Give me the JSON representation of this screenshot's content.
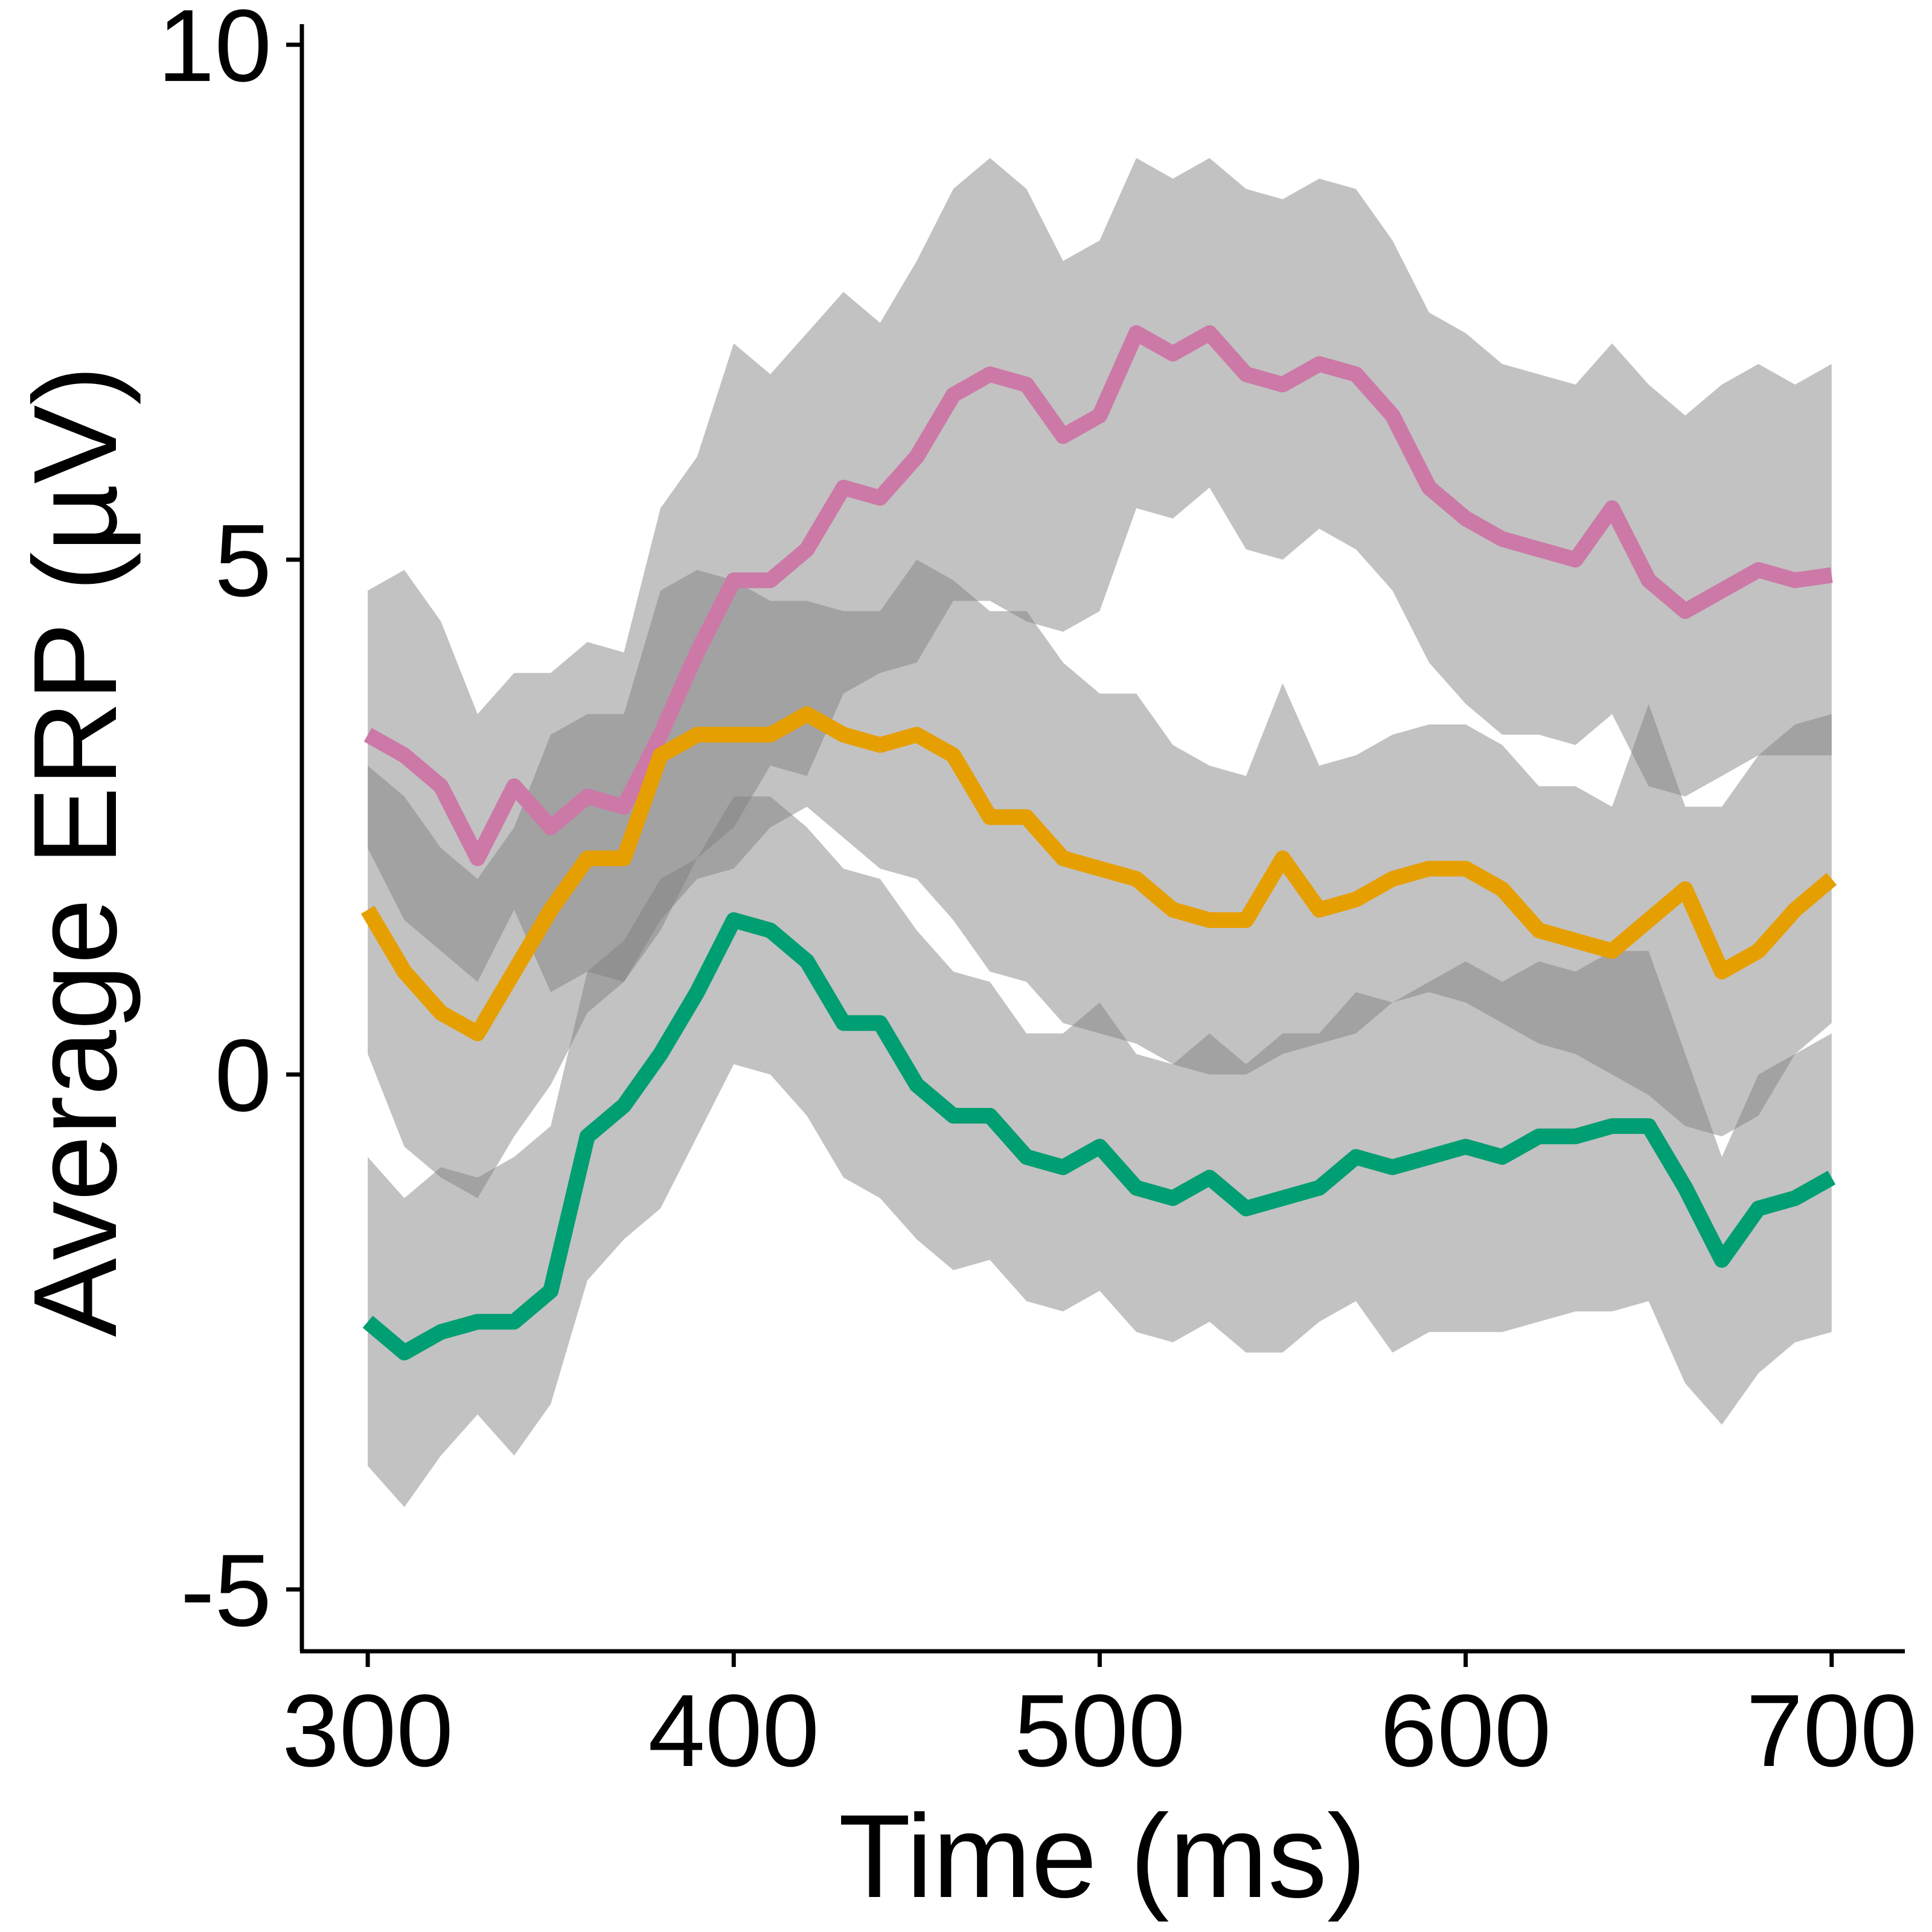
{
  "chart_data": {
    "type": "line",
    "title": "",
    "xlabel": "Time (ms)",
    "ylabel": "Average ERP (µV)",
    "xlim": [
      282,
      720
    ],
    "ylim": [
      -5.6,
      10.2
    ],
    "xticks": [
      300,
      400,
      500,
      600,
      700
    ],
    "yticks": [
      -5,
      0,
      5,
      10
    ],
    "xtick_labels": [
      "300",
      "400",
      "500",
      "600",
      "700"
    ],
    "ytick_labels": [
      "-5",
      "0",
      "5",
      "10"
    ],
    "grid": false,
    "legend": "none",
    "x": [
      300,
      310,
      320,
      330,
      340,
      350,
      360,
      370,
      380,
      390,
      400,
      410,
      420,
      430,
      440,
      450,
      460,
      470,
      480,
      490,
      500,
      510,
      520,
      530,
      540,
      550,
      560,
      570,
      580,
      590,
      600,
      610,
      620,
      630,
      640,
      650,
      660,
      670,
      680,
      690,
      700
    ],
    "series": [
      {
        "color": "#CC79A7",
        "values": [
          3.3,
          3.1,
          2.8,
          2.1,
          2.8,
          2.4,
          2.7,
          2.6,
          3.3,
          4.1,
          4.8,
          4.8,
          5.1,
          5.7,
          5.6,
          6.0,
          6.6,
          6.8,
          6.7,
          6.2,
          6.4,
          7.2,
          7.0,
          7.2,
          6.8,
          6.7,
          6.9,
          6.8,
          6.4,
          5.7,
          5.4,
          5.2,
          5.1,
          5.0,
          5.5,
          4.8,
          4.5,
          4.7,
          4.9,
          4.8,
          4.85
        ],
        "lower": [
          2.2,
          1.5,
          1.2,
          0.9,
          1.6,
          0.8,
          1.0,
          0.9,
          1.4,
          2.1,
          2.4,
          3.0,
          2.9,
          3.7,
          3.9,
          4.0,
          4.6,
          4.6,
          4.4,
          4.3,
          4.5,
          5.5,
          5.4,
          5.7,
          5.1,
          5.0,
          5.3,
          5.1,
          4.7,
          4.0,
          3.6,
          3.3,
          3.3,
          3.2,
          3.5,
          2.8,
          2.7,
          2.9,
          3.1,
          3.1,
          3.1
        ],
        "upper": [
          4.7,
          4.9,
          4.4,
          3.5,
          3.9,
          3.9,
          4.2,
          4.1,
          5.5,
          6.0,
          7.1,
          6.8,
          7.2,
          7.6,
          7.3,
          7.9,
          8.6,
          8.9,
          8.6,
          7.9,
          8.1,
          8.9,
          8.7,
          8.9,
          8.6,
          8.5,
          8.7,
          8.6,
          8.1,
          7.4,
          7.2,
          6.9,
          6.8,
          6.7,
          7.1,
          6.7,
          6.4,
          6.7,
          6.9,
          6.7,
          6.9
        ]
      },
      {
        "color": "#E69F00",
        "values": [
          1.6,
          1.0,
          0.6,
          0.4,
          1.0,
          1.6,
          2.1,
          2.1,
          3.1,
          3.3,
          3.3,
          3.3,
          3.5,
          3.3,
          3.2,
          3.3,
          3.1,
          2.5,
          2.5,
          2.1,
          2.0,
          1.9,
          1.6,
          1.5,
          1.5,
          2.1,
          1.6,
          1.7,
          1.9,
          2.0,
          2.0,
          1.8,
          1.4,
          1.3,
          1.2,
          1.5,
          1.8,
          1.0,
          1.2,
          1.6,
          1.9
        ],
        "lower": [
          0.2,
          -0.7,
          -1.0,
          -1.2,
          -0.6,
          -0.1,
          0.6,
          0.9,
          1.5,
          1.9,
          2.0,
          2.4,
          2.6,
          2.3,
          2.0,
          1.9,
          1.5,
          1.0,
          0.9,
          0.5,
          0.4,
          0.3,
          0.1,
          0.0,
          0.0,
          0.2,
          0.3,
          0.4,
          0.7,
          0.8,
          0.7,
          0.5,
          0.3,
          0.2,
          0.0,
          -0.2,
          -0.5,
          -0.6,
          -0.4,
          0.2,
          0.5
        ],
        "upper": [
          3.0,
          2.7,
          2.2,
          1.9,
          2.4,
          3.3,
          3.5,
          3.5,
          4.7,
          4.9,
          4.8,
          4.6,
          4.6,
          4.5,
          4.5,
          5.0,
          4.8,
          4.5,
          4.5,
          4.0,
          3.7,
          3.7,
          3.2,
          3.0,
          2.9,
          3.8,
          3.0,
          3.1,
          3.3,
          3.4,
          3.4,
          3.2,
          2.8,
          2.8,
          2.6,
          3.6,
          2.6,
          2.6,
          3.1,
          3.4,
          3.5
        ]
      },
      {
        "color": "#009E73",
        "values": [
          -2.4,
          -2.7,
          -2.5,
          -2.4,
          -2.4,
          -2.1,
          -0.6,
          -0.3,
          0.2,
          0.8,
          1.5,
          1.4,
          1.1,
          0.5,
          0.5,
          -0.1,
          -0.4,
          -0.4,
          -0.8,
          -0.9,
          -0.7,
          -1.1,
          -1.2,
          -1.0,
          -1.3,
          -1.2,
          -1.1,
          -0.8,
          -0.9,
          -0.8,
          -0.7,
          -0.8,
          -0.6,
          -0.6,
          -0.5,
          -0.5,
          -1.1,
          -1.8,
          -1.3,
          -1.2,
          -1.0
        ],
        "lower": [
          -3.8,
          -4.2,
          -3.7,
          -3.3,
          -3.7,
          -3.2,
          -2.0,
          -1.6,
          -1.3,
          -0.6,
          0.1,
          0.0,
          -0.4,
          -1.0,
          -1.2,
          -1.6,
          -1.9,
          -1.8,
          -2.2,
          -2.3,
          -2.1,
          -2.5,
          -2.6,
          -2.4,
          -2.7,
          -2.7,
          -2.4,
          -2.2,
          -2.7,
          -2.5,
          -2.5,
          -2.5,
          -2.4,
          -2.3,
          -2.3,
          -2.2,
          -3.0,
          -3.4,
          -2.9,
          -2.6,
          -2.5
        ],
        "upper": [
          -0.8,
          -1.2,
          -0.9,
          -1.0,
          -0.8,
          -0.5,
          1.0,
          1.3,
          1.9,
          2.1,
          2.7,
          2.7,
          2.4,
          2.0,
          1.9,
          1.4,
          1.0,
          0.9,
          0.4,
          0.4,
          0.7,
          0.2,
          0.1,
          0.4,
          0.1,
          0.4,
          0.4,
          0.8,
          0.7,
          0.9,
          1.1,
          0.9,
          1.1,
          1.0,
          1.2,
          1.2,
          0.2,
          -0.8,
          0.0,
          0.2,
          0.4
        ]
      }
    ]
  }
}
